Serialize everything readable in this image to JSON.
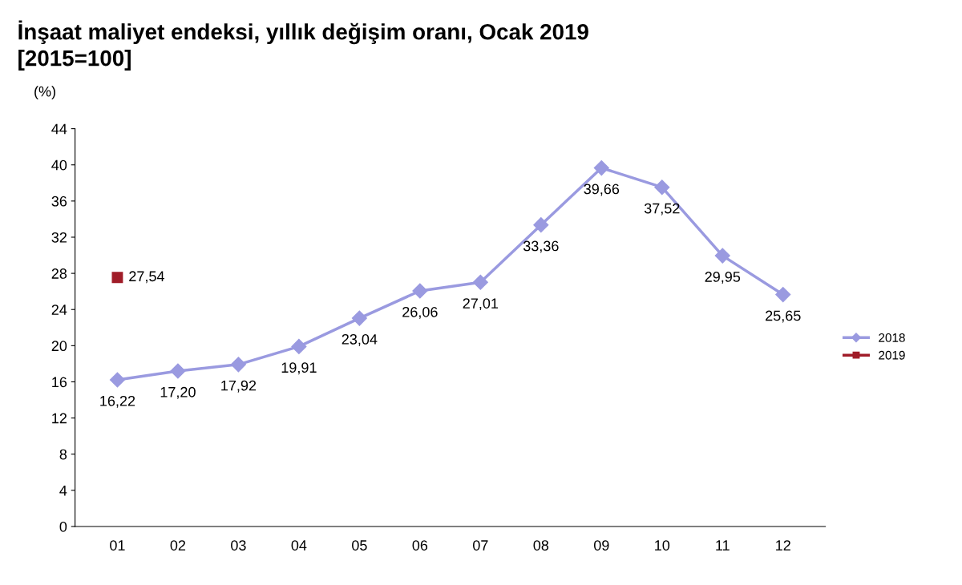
{
  "chart_data": {
    "type": "line",
    "title": "İnşaat maliyet endeksi, yıllık değişim oranı, Ocak 2019",
    "subtitle": "[2015=100]",
    "ylabel": "(%)",
    "categories": [
      "01",
      "02",
      "03",
      "04",
      "05",
      "06",
      "07",
      "08",
      "09",
      "10",
      "11",
      "12"
    ],
    "series": [
      {
        "name": "2018",
        "color": "#9a9ae0",
        "marker": "diamond",
        "values": [
          16.22,
          17.2,
          17.92,
          19.91,
          23.04,
          26.06,
          27.01,
          33.36,
          39.66,
          37.52,
          29.95,
          25.65
        ],
        "value_labels": [
          "16,22",
          "17,20",
          "17,92",
          "19,91",
          "23,04",
          "26,06",
          "27,01",
          "33,36",
          "39,66",
          "37,52",
          "29,95",
          "25,65"
        ]
      },
      {
        "name": "2019",
        "color": "#a01c28",
        "marker": "square",
        "values": [
          27.54,
          null,
          null,
          null,
          null,
          null,
          null,
          null,
          null,
          null,
          null,
          null
        ],
        "value_labels": [
          "27,54",
          null,
          null,
          null,
          null,
          null,
          null,
          null,
          null,
          null,
          null,
          null
        ]
      }
    ],
    "ylim": [
      0,
      44
    ],
    "yticks": [
      0,
      4,
      8,
      12,
      16,
      20,
      24,
      28,
      32,
      36,
      40,
      44
    ],
    "grid": false,
    "legend": "right"
  }
}
